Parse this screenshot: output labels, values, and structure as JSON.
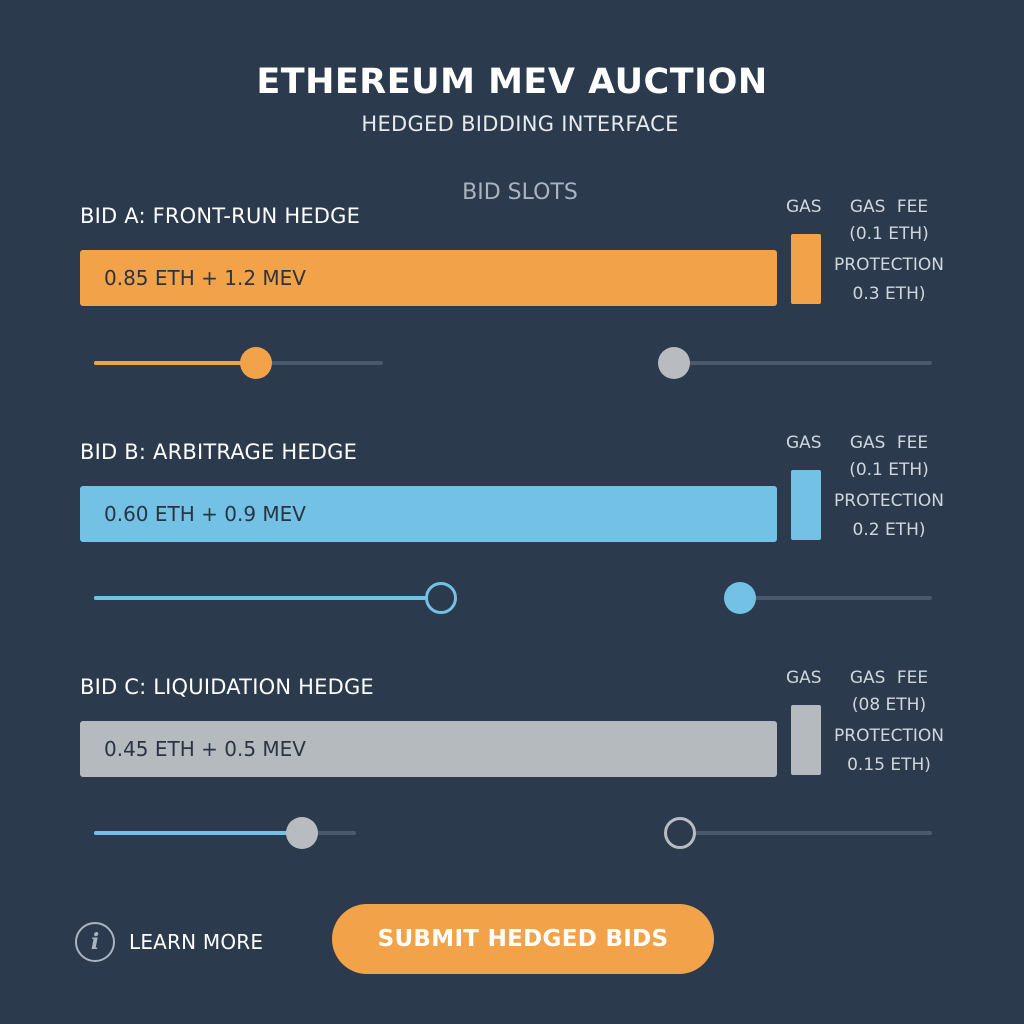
{
  "header": {
    "title": "ETHEREUM MEV AUCTION",
    "subtitle": "HEDGED BIDDING INTERFACE",
    "section_label": "BID SLOTS"
  },
  "colors": {
    "background": "#2b3a4c",
    "orange": "#f2a34a",
    "blue": "#74c1e6",
    "gray": "#b5babf",
    "track": "#4b5a6b",
    "thumb_gray": "#b8bcc1"
  },
  "bids": [
    {
      "label": "BID A: FRONT-RUN HEDGE",
      "amount": "0.85 ETH + 1.2 MEV",
      "gas_label": "GAS",
      "fee_label": "GAS FEE",
      "fee_value": "(0.1 ETH)",
      "protection_label": "PROTECTION",
      "protection_value": "0.3 ETH)",
      "bid_slider_level": 0.56,
      "gas_slider_level": 0.0
    },
    {
      "label": "BID B: ARBITRAGE HEDGE",
      "amount": "0.60 ETH + 0.9 MEV",
      "gas_label": "GAS",
      "fee_label": "GAS FEE",
      "fee_value": "(0.1 ETH)",
      "protection_label": "PROTECTION",
      "protection_value": "0.2 ETH)",
      "bid_slider_level": 1.0,
      "gas_slider_level": 0.0
    },
    {
      "label": "BID C: LIQUIDATION HEDGE",
      "amount": "0.45 ETH + 0.5 MEV",
      "gas_label": "GAS",
      "fee_label": "GAS FEE",
      "fee_value": "(08 ETH)",
      "protection_label": "PROTECTION",
      "protection_value": "0.15 ETH)",
      "bid_slider_level": 0.79,
      "gas_slider_level": 0.0
    }
  ],
  "footer": {
    "info_glyph": "i",
    "learn_more": "LEARN MORE",
    "submit": "SUBMIT HEDGED BIDS"
  }
}
